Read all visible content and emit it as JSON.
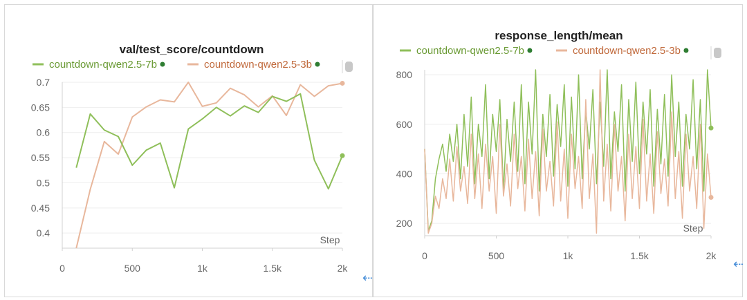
{
  "colors": {
    "green": "#8fbf5a",
    "peach": "#e8b79c",
    "green_text": "#6a9a34",
    "peach_text": "#c0693b",
    "dot": "#2e7d32"
  },
  "chart_data": [
    {
      "type": "line",
      "title": "val/test_score/countdown",
      "xlabel": "Step",
      "xlim": [
        0,
        2000
      ],
      "ylim": [
        0.37,
        0.7
      ],
      "x_ticks": [
        "0",
        "500",
        "1k",
        "1.5k",
        "2k"
      ],
      "x_tick_values": [
        0,
        500,
        1000,
        1500,
        2000
      ],
      "y_ticks": [
        "0.4",
        "0.45",
        "0.5",
        "0.55",
        "0.6",
        "0.65",
        "0.7"
      ],
      "y_tick_values": [
        0.4,
        0.45,
        0.5,
        0.55,
        0.6,
        0.65,
        0.7
      ],
      "series": [
        {
          "name": "countdown-qwen2.5-7b",
          "color": "#8fbf5a",
          "x": [
            100,
            200,
            300,
            400,
            500,
            600,
            700,
            800,
            900,
            1000,
            1100,
            1200,
            1300,
            1400,
            1500,
            1600,
            1700,
            1800,
            1900,
            2000
          ],
          "y": [
            0.53,
            0.637,
            0.605,
            0.592,
            0.535,
            0.565,
            0.579,
            0.49,
            0.607,
            0.627,
            0.65,
            0.633,
            0.653,
            0.64,
            0.672,
            0.662,
            0.677,
            0.545,
            0.488,
            0.554
          ]
        },
        {
          "name": "countdown-qwen2.5-3b",
          "color": "#e8b79c",
          "x": [
            100,
            200,
            300,
            400,
            500,
            600,
            700,
            800,
            900,
            1000,
            1100,
            1200,
            1300,
            1400,
            1500,
            1600,
            1700,
            1800,
            1900,
            2000
          ],
          "y": [
            0.37,
            0.487,
            0.582,
            0.557,
            0.631,
            0.651,
            0.665,
            0.661,
            0.7,
            0.652,
            0.659,
            0.688,
            0.675,
            0.651,
            0.673,
            0.634,
            0.695,
            0.672,
            0.693,
            0.698
          ]
        }
      ]
    },
    {
      "type": "line",
      "title": "response_length/mean",
      "xlabel": "Step",
      "xlim": [
        0,
        2000
      ],
      "ylim": [
        150,
        820
      ],
      "x_ticks": [
        "0",
        "500",
        "1k",
        "1.5k",
        "2k"
      ],
      "x_tick_values": [
        0,
        500,
        1000,
        1500,
        2000
      ],
      "y_ticks": [
        "200",
        "400",
        "600",
        "800"
      ],
      "y_tick_values": [
        200,
        400,
        600,
        800
      ],
      "series": [
        {
          "name": "countdown-qwen2.5-7b",
          "color": "#8fbf5a",
          "x": [
            0,
            25,
            50,
            75,
            100,
            125,
            150,
            175,
            200,
            225,
            250,
            275,
            300,
            325,
            350,
            375,
            400,
            425,
            450,
            475,
            500,
            525,
            550,
            575,
            600,
            625,
            650,
            675,
            700,
            725,
            750,
            775,
            800,
            825,
            850,
            875,
            900,
            925,
            950,
            975,
            1000,
            1025,
            1050,
            1075,
            1100,
            1125,
            1150,
            1175,
            1200,
            1225,
            1250,
            1275,
            1300,
            1325,
            1350,
            1375,
            1400,
            1425,
            1450,
            1475,
            1500,
            1525,
            1550,
            1575,
            1600,
            1625,
            1650,
            1675,
            1700,
            1725,
            1750,
            1775,
            1800,
            1825,
            1850,
            1875,
            1900,
            1925,
            1950,
            1975,
            2000
          ],
          "y": [
            500,
            170,
            210,
            380,
            460,
            520,
            410,
            560,
            450,
            600,
            380,
            640,
            430,
            710,
            360,
            600,
            470,
            760,
            380,
            640,
            490,
            700,
            330,
            620,
            450,
            690,
            410,
            760,
            360,
            690,
            480,
            820,
            330,
            640,
            470,
            720,
            390,
            680,
            510,
            760,
            350,
            710,
            420,
            800,
            380,
            660,
            500,
            740,
            360,
            690,
            430,
            820,
            380,
            650,
            490,
            760,
            330,
            700,
            450,
            770,
            400,
            690,
            480,
            740,
            350,
            660,
            440,
            720,
            390,
            800,
            470,
            690,
            350,
            640,
            500,
            780,
            420,
            700,
            330,
            820,
            585
          ]
        },
        {
          "name": "countdown-qwen2.5-3b",
          "color": "#e8b79c",
          "x": [
            0,
            25,
            50,
            75,
            100,
            125,
            150,
            175,
            200,
            225,
            250,
            275,
            300,
            325,
            350,
            375,
            400,
            425,
            450,
            475,
            500,
            525,
            550,
            575,
            600,
            625,
            650,
            675,
            700,
            725,
            750,
            775,
            800,
            825,
            850,
            875,
            900,
            925,
            950,
            975,
            1000,
            1025,
            1050,
            1075,
            1100,
            1125,
            1150,
            1175,
            1200,
            1225,
            1250,
            1275,
            1300,
            1325,
            1350,
            1375,
            1400,
            1425,
            1450,
            1475,
            1500,
            1525,
            1550,
            1575,
            1600,
            1625,
            1650,
            1675,
            1700,
            1725,
            1750,
            1775,
            1800,
            1825,
            1850,
            1875,
            1900,
            1925,
            1950,
            1975,
            2000
          ],
          "y": [
            500,
            160,
            200,
            310,
            260,
            380,
            300,
            460,
            290,
            510,
            330,
            430,
            280,
            560,
            300,
            480,
            260,
            520,
            330,
            470,
            240,
            600,
            310,
            440,
            270,
            560,
            340,
            470,
            250,
            540,
            300,
            490,
            230,
            580,
            330,
            450,
            270,
            610,
            290,
            500,
            220,
            560,
            340,
            470,
            260,
            700,
            300,
            480,
            160,
            820,
            290,
            520,
            250,
            600,
            330,
            470,
            210,
            560,
            300,
            510,
            260,
            620,
            290,
            480,
            240,
            570,
            320,
            460,
            270,
            650,
            300,
            490,
            220,
            560,
            330,
            470,
            260,
            600,
            180,
            480,
            305
          ]
        }
      ]
    }
  ]
}
